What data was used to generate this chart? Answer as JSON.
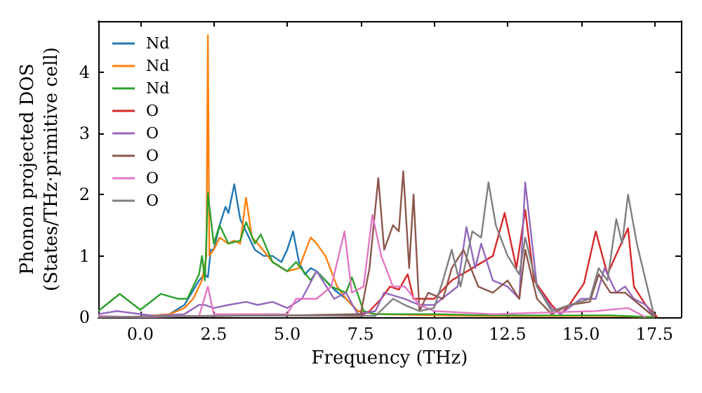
{
  "chart_data": {
    "type": "line",
    "xlabel": "Frequency (THz)",
    "ylabel": "Phonon projected DOS\n(States/THz·primitive cell)",
    "xlim": [
      -1.43,
      18.4
    ],
    "ylim": [
      0,
      4.83
    ],
    "xticks": [
      {
        "value": 0,
        "label": "0.0"
      },
      {
        "value": 2.5,
        "label": "2.5"
      },
      {
        "value": 5,
        "label": "5.0"
      },
      {
        "value": 7.5,
        "label": "7.5"
      },
      {
        "value": 10,
        "label": "10.0"
      },
      {
        "value": 12.5,
        "label": "12.5"
      },
      {
        "value": 15,
        "label": "15.0"
      },
      {
        "value": 17.5,
        "label": "17.5"
      }
    ],
    "yticks": [
      0,
      1,
      2,
      3,
      4
    ],
    "grid": false,
    "legend": "top left",
    "marker": "none",
    "line_style": "solid",
    "series": [
      {
        "name": "Nd",
        "color": "#1f77b4",
        "x": [
          -1.43,
          0,
          1,
          1.5,
          2.0,
          2.2,
          2.3,
          2.4,
          2.5,
          2.7,
          2.9,
          3.0,
          3.2,
          3.4,
          3.6,
          3.9,
          4.2,
          4.5,
          4.8,
          5.0,
          5.2,
          5.4,
          5.6,
          5.8,
          6.0,
          6.3,
          6.6,
          7.0,
          7.4,
          8
        ],
        "values": [
          0.0,
          0.01,
          0.05,
          0.2,
          0.6,
          0.7,
          0.65,
          1.1,
          1.1,
          1.5,
          1.8,
          1.7,
          2.17,
          1.6,
          1.4,
          1.1,
          1.0,
          1.0,
          0.9,
          1.1,
          1.4,
          0.9,
          0.7,
          0.8,
          0.75,
          0.6,
          0.45,
          0.3,
          0.1,
          0.05
        ]
      },
      {
        "name": "Nd",
        "color": "#ff7f0e",
        "x": [
          -1.43,
          0,
          1,
          1.5,
          1.8,
          2.1,
          2.25,
          2.3,
          2.35,
          2.5,
          2.7,
          3.0,
          3.2,
          3.4,
          3.6,
          3.8,
          4.0,
          4.5,
          5.0,
          5.4,
          5.8,
          6.0,
          6.3,
          6.7,
          7.0,
          7.4,
          8,
          10,
          12,
          14,
          16,
          17.5
        ],
        "values": [
          0.0,
          0.01,
          0.05,
          0.15,
          0.3,
          0.6,
          1.0,
          4.6,
          1.0,
          1.1,
          1.3,
          1.2,
          1.25,
          1.2,
          1.95,
          1.3,
          1.2,
          0.9,
          0.75,
          0.8,
          1.3,
          1.2,
          1.0,
          0.5,
          0.3,
          0.1,
          0.05,
          0.03,
          0.02,
          0.02,
          0.02,
          0
        ]
      },
      {
        "name": "Nd",
        "color": "#2ca02c",
        "x": [
          -1.43,
          -0.7,
          0,
          0.7,
          1.3,
          1.6,
          2.0,
          2.1,
          2.2,
          2.3,
          2.5,
          2.7,
          3.0,
          3.4,
          3.6,
          3.9,
          4.1,
          4.5,
          5.0,
          5.3,
          5.8,
          6.0,
          6.5,
          7.0,
          7.2,
          7.6,
          8,
          10,
          12,
          14,
          16,
          17.5
        ],
        "values": [
          0.1,
          0.38,
          0.12,
          0.38,
          0.3,
          0.3,
          0.7,
          1.0,
          0.6,
          2.02,
          1.2,
          1.5,
          1.2,
          1.25,
          1.55,
          1.2,
          1.35,
          0.9,
          0.75,
          0.9,
          0.6,
          0.75,
          0.5,
          0.4,
          0.65,
          0.1,
          0.05,
          0.05,
          0.03,
          0.03,
          0.03,
          0
        ]
      },
      {
        "name": "O",
        "color": "#d62728",
        "x": [
          -1.43,
          2,
          5,
          7.5,
          7.8,
          8.2,
          8.5,
          8.8,
          9.1,
          9.3,
          10,
          10.6,
          11.3,
          12.0,
          12.4,
          12.8,
          13.1,
          13.4,
          14.0,
          14.3,
          14.6,
          15.1,
          15.5,
          15.9,
          16.6,
          16.8,
          17.2,
          17.6
        ],
        "values": [
          0.0,
          0.02,
          0.03,
          0.02,
          0.1,
          0.3,
          0.5,
          0.45,
          0.7,
          0.3,
          0.3,
          0.6,
          0.8,
          1.0,
          1.7,
          0.8,
          1.75,
          0.6,
          0.2,
          0.05,
          0.2,
          0.55,
          1.4,
          0.7,
          1.45,
          0.5,
          0.2,
          0
        ]
      },
      {
        "name": "O",
        "color": "#9467bd",
        "x": [
          -1.43,
          -0.8,
          0.5,
          1.5,
          2.0,
          2.2,
          2.5,
          3.0,
          3.6,
          4.0,
          4.5,
          5.0,
          5.5,
          6.0,
          6.6,
          7.0,
          7.4,
          8.0,
          8.3,
          9.0,
          9.5,
          10.0,
          10.8,
          11.1,
          11.4,
          11.6,
          12.0,
          12.5,
          12.9,
          13.1,
          13.5,
          14.0,
          14.3,
          15.0,
          15.5,
          15.8,
          16.2,
          16.5,
          16.8,
          17.2,
          17.5
        ],
        "values": [
          0.05,
          0.1,
          0.02,
          0.05,
          0.2,
          0.2,
          0.15,
          0.2,
          0.25,
          0.2,
          0.25,
          0.15,
          0.3,
          0.75,
          0.3,
          0.4,
          0.05,
          0.1,
          0.4,
          0.3,
          0.2,
          0.2,
          0.5,
          1.47,
          0.8,
          1.2,
          0.6,
          0.5,
          0.3,
          2.2,
          0.5,
          0.15,
          0.05,
          0.3,
          0.3,
          0.8,
          0.4,
          0.5,
          0.3,
          0.2,
          0
        ]
      },
      {
        "name": "O",
        "color": "#8c564b",
        "x": [
          -1.43,
          2,
          5,
          7.5,
          7.8,
          8.1,
          8.3,
          8.6,
          8.8,
          8.95,
          9.15,
          9.3,
          9.5,
          9.8,
          10.3,
          10.6,
          11.0,
          11.5,
          12.0,
          12.5,
          12.9,
          13.1,
          13.5,
          14.0,
          14.6,
          15.3,
          15.6,
          16.0,
          16.5,
          17.0,
          17.5
        ],
        "values": [
          0.0,
          0.02,
          0.03,
          0.05,
          0.8,
          2.27,
          1.1,
          1.5,
          1.4,
          2.38,
          0.8,
          2.0,
          0.1,
          0.4,
          0.3,
          0.8,
          1.1,
          0.5,
          0.4,
          0.6,
          0.3,
          1.1,
          0.3,
          0.05,
          0.2,
          0.25,
          0.7,
          0.4,
          0.4,
          0.2,
          0
        ]
      },
      {
        "name": "O",
        "color": "#e377c2",
        "x": [
          -1.43,
          0,
          2.0,
          2.3,
          2.5,
          5.0,
          5.3,
          6.0,
          6.5,
          6.95,
          7.2,
          7.6,
          7.9,
          8.2,
          8.6,
          9.0,
          9.5,
          10,
          12,
          15.5,
          16.6,
          17.2
        ],
        "values": [
          0.02,
          0.0,
          0.02,
          0.5,
          0.05,
          0.05,
          0.3,
          0.3,
          0.5,
          1.4,
          0.4,
          0.5,
          1.67,
          1.0,
          0.5,
          0.5,
          0.2,
          0.1,
          0.05,
          0.1,
          0.15,
          0
        ]
      },
      {
        "name": "O",
        "color": "#7f7f7f",
        "x": [
          -1.43,
          2,
          5,
          8.0,
          8.6,
          9.0,
          9.5,
          10.0,
          10.3,
          10.6,
          10.9,
          11.3,
          11.6,
          11.85,
          12.1,
          12.5,
          12.9,
          13.1,
          13.5,
          14.0,
          14.6,
          15.3,
          15.6,
          15.9,
          16.2,
          16.4,
          16.6,
          16.9,
          17.1,
          17.5
        ],
        "values": [
          0.0,
          0.02,
          0.03,
          0.02,
          0.3,
          0.2,
          0.1,
          0.15,
          0.6,
          1.1,
          0.5,
          1.4,
          1.3,
          2.2,
          1.5,
          1.0,
          0.7,
          1.3,
          0.5,
          0.1,
          0.2,
          0.3,
          0.8,
          0.6,
          1.6,
          1.2,
          2.0,
          1.2,
          0.8,
          0
        ]
      }
    ]
  }
}
